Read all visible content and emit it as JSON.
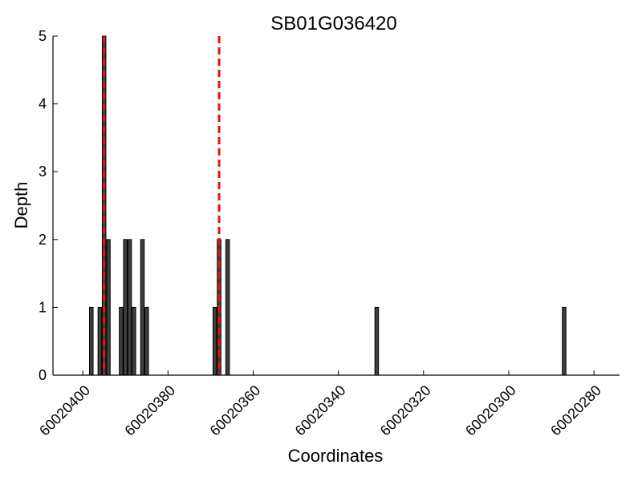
{
  "chart_data": {
    "type": "bar",
    "title": "SB01G036420",
    "xlabel": "Coordinates",
    "ylabel": "Depth",
    "x_reversed": true,
    "xlim": [
      60020407,
      60020274
    ],
    "ylim": [
      0,
      5
    ],
    "x_ticks": [
      60020400,
      60020380,
      60020360,
      60020340,
      60020320,
      60020300,
      60020280
    ],
    "y_ticks": [
      0,
      1,
      2,
      3,
      4,
      5
    ],
    "grid": false,
    "bar_color": "#3f3f3f",
    "bars": [
      {
        "x": 60020398,
        "y": 1
      },
      {
        "x": 60020396,
        "y": 1
      },
      {
        "x": 60020395,
        "y": 5
      },
      {
        "x": 60020394,
        "y": 2
      },
      {
        "x": 60020391,
        "y": 1
      },
      {
        "x": 60020390,
        "y": 2
      },
      {
        "x": 60020389,
        "y": 2
      },
      {
        "x": 60020388,
        "y": 1
      },
      {
        "x": 60020386,
        "y": 2
      },
      {
        "x": 60020385,
        "y": 1
      },
      {
        "x": 60020369,
        "y": 1
      },
      {
        "x": 60020368,
        "y": 2
      },
      {
        "x": 60020366,
        "y": 2
      },
      {
        "x": 60020331,
        "y": 1
      },
      {
        "x": 60020287,
        "y": 1
      }
    ],
    "vlines": [
      {
        "x": 60020395,
        "color": "#ee1111",
        "style": "dashed"
      },
      {
        "x": 60020368,
        "color": "#ee1111",
        "style": "dashed"
      }
    ]
  }
}
